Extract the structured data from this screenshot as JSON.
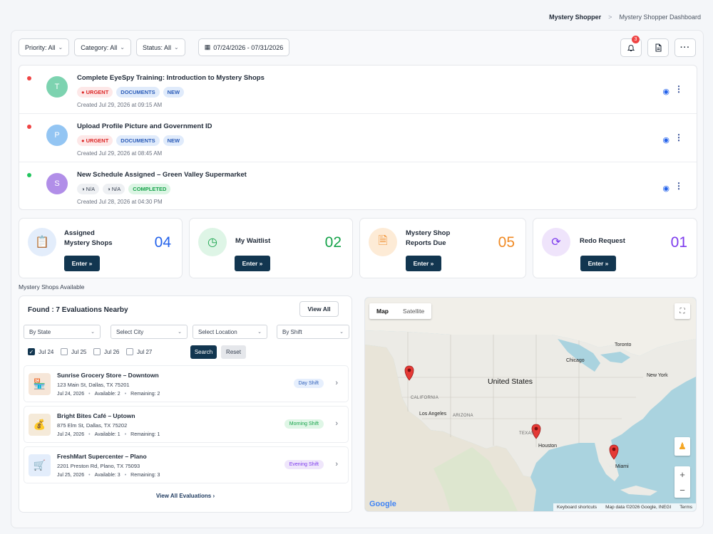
{
  "breadcrumb": {
    "current": "Mystery Shopper",
    "separator": ">",
    "page": "Mystery Shopper Dashboard"
  },
  "filters": {
    "priority": "Priority: All",
    "category": "Category: All",
    "status": "Status: All",
    "date_range": "07/24/2026 - 07/31/2026"
  },
  "toolbar": {
    "notification_count": "3"
  },
  "tasks": [
    {
      "avatar": "T",
      "title": "Complete EyeSpy Training: Introduction to Mystery Shops",
      "tag1": "URGENT",
      "tag2": "DOCUMENTS",
      "tag3": "NEW",
      "created": "Created Jul 29, 2026 at 09:15 AM"
    },
    {
      "avatar": "P",
      "title": "Upload Profile Picture and Government ID",
      "tag1": "URGENT",
      "tag2": "DOCUMENTS",
      "tag3": "NEW",
      "created": "Created Jul 29, 2026 at 08:45 AM"
    },
    {
      "avatar": "S",
      "title": "New Schedule Assigned – Green Valley Supermarket",
      "tag1": "N/A",
      "tag2": "N/A",
      "tag3": "COMPLETED",
      "created": "Created Jul 28, 2026 at 04:30 PM"
    }
  ],
  "stats": [
    {
      "label_1": "Assigned",
      "label_2": "Mystery Shops",
      "value": "04",
      "button": "Enter »"
    },
    {
      "label_1": "My Waitlist",
      "label_2": "",
      "value": "02",
      "button": "Enter »"
    },
    {
      "label_1": "Mystery Shop",
      "label_2": "Reports Due",
      "value": "05",
      "button": "Enter »"
    },
    {
      "label_1": "Redo Request",
      "label_2": "",
      "value": "01",
      "button": "Enter »"
    }
  ],
  "available": {
    "section_title": "Mystery Shops Available",
    "found": "Found : 7 Evaluations Nearby",
    "view_all": "View All",
    "state": "By State",
    "city": "Select City",
    "location": "Select Location",
    "shift": "By Shift",
    "dates": [
      "Jul 24",
      "Jul 25",
      "Jul 26",
      "Jul 27"
    ],
    "search": "Search",
    "reset": "Reset",
    "view_all_evaluations": "View All Evaluations"
  },
  "shops": [
    {
      "name": "Sunrise Grocery Store – Downtown",
      "address": "123 Main St, Dallas, TX 75201",
      "date": "Jul 24, 2026",
      "available": "Available: 2",
      "remaining": "Remaining: 2",
      "shift": "Day Shift"
    },
    {
      "name": "Bright Bites Café – Uptown",
      "address": "875 Elm St, Dallas, TX 75202",
      "date": "Jul 24, 2026",
      "available": "Available: 1",
      "remaining": "Remaining: 1",
      "shift": "Morning Shift"
    },
    {
      "name": "FreshMart Supercenter – Plano",
      "address": "2201 Preston Rd, Plano, TX 75093",
      "date": "Jul 25, 2026",
      "available": "Available: 3",
      "remaining": "Remaining: 3",
      "shift": "Evening Shift"
    }
  ],
  "map": {
    "tab_map": "Map",
    "tab_satellite": "Satellite",
    "country": "United States",
    "cities": [
      "Toronto",
      "Chicago",
      "New York",
      "Los Angeles",
      "Houston",
      "Miami"
    ],
    "states": [
      "CALIFORNIA",
      "ARIZONA",
      "TEXAS"
    ],
    "google": "Google",
    "keyboard": "Keyboard shortcuts",
    "map_data": "Map data ©2026 Google, INEGI",
    "terms": "Terms"
  },
  "colors": {
    "navy": "#123650",
    "blue": "#2563eb",
    "green": "#16a34a",
    "orange": "#f08a24",
    "purple": "#7c3aed"
  }
}
